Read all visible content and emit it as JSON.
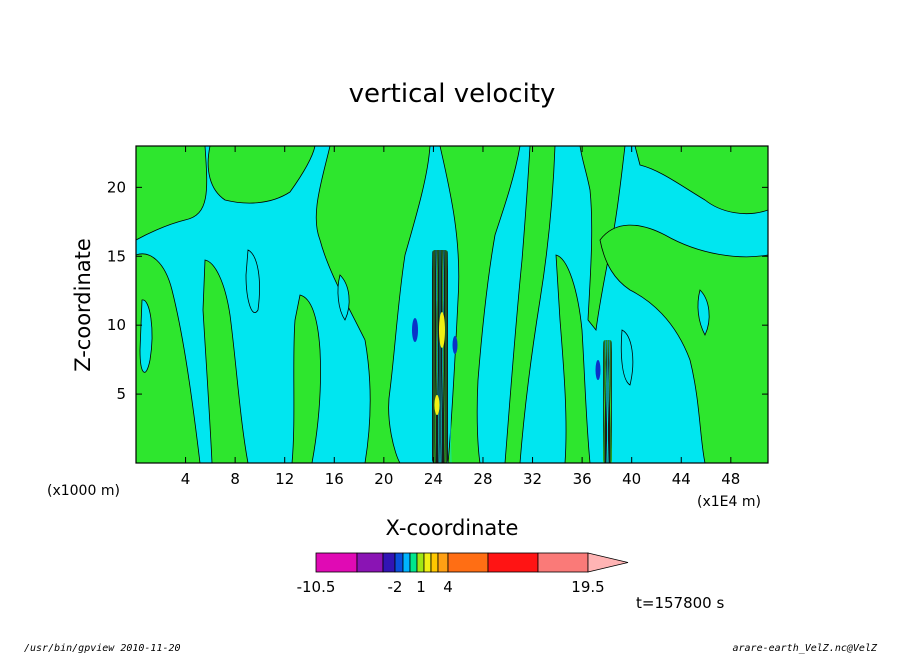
{
  "chart_data": {
    "type": "heatmap",
    "title": "vertical velocity",
    "xlabel": "X-coordinate",
    "ylabel": "Z-coordinate",
    "x_unit_left": "(x1000 m)",
    "x_unit_right": "(x1E4 m)",
    "xlim": [
      0,
      51
    ],
    "ylim": [
      0,
      23
    ],
    "x_ticks": [
      4,
      8,
      12,
      16,
      20,
      24,
      28,
      32,
      36,
      40,
      44,
      48
    ],
    "y_ticks": [
      5,
      10,
      15,
      20
    ],
    "colorbar": {
      "levels": [
        "-10.5",
        "-2",
        "1",
        "4",
        "19.5"
      ],
      "colors": [
        "#e00ab4",
        "#8a14b4",
        "#3214b4",
        "#0a50dc",
        "#00b4ff",
        "#00e68c",
        "#a0e614",
        "#f0f014",
        "#ffc800",
        "#ffa014",
        "#ff6e14",
        "#ff1414",
        "#fa7a78",
        "#ffb4b4"
      ]
    },
    "time_label": "t=157800 s",
    "fields": {
      "background": "#00e6f0",
      "positive": "#2ee62e",
      "strong_negative": "#0a32c8",
      "strong_positive": "#f0f014",
      "contour_line": "#000000"
    }
  },
  "footer": {
    "left": "/usr/bin/gpview  2010-11-20",
    "right": "arare-earth_VelZ.nc@VelZ"
  }
}
